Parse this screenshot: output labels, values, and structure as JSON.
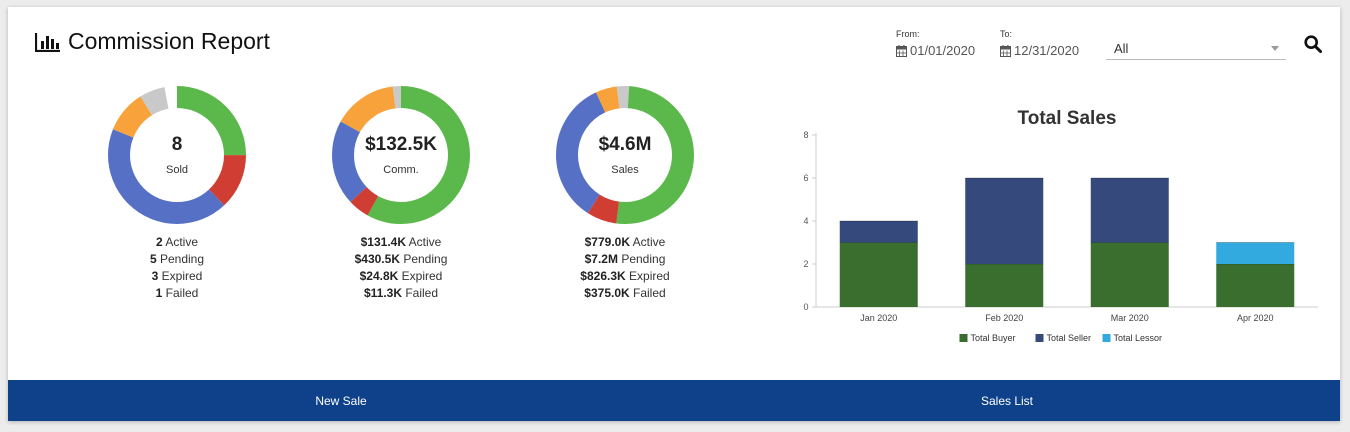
{
  "header": {
    "title": "Commission Report",
    "icon": "bar-chart-icon"
  },
  "filters": {
    "from_label": "From:",
    "from_value": "01/01/2020",
    "to_label": "To:",
    "to_value": "12/31/2020",
    "select_value": "All"
  },
  "colors": {
    "active": "#5bb84a",
    "pending": "#5570c4",
    "expired": "#cf3d33",
    "failed": "#f7a23b",
    "other": "#c9c9c9",
    "total_buyer": "#3a6e2e",
    "total_seller": "#35497c",
    "total_lessor": "#33aadf",
    "footer": "#0f418a"
  },
  "donuts": [
    {
      "value": "8",
      "caption": "Sold",
      "segments": [
        {
          "name": "active",
          "fraction": 0.25
        },
        {
          "name": "expired",
          "fraction": 0.13
        },
        {
          "name": "pending",
          "fraction": 0.43
        },
        {
          "name": "failed",
          "fraction": 0.1
        },
        {
          "name": "other",
          "fraction": 0.06
        }
      ],
      "legend": [
        {
          "value": "2",
          "label": "Active"
        },
        {
          "value": "5",
          "label": "Pending"
        },
        {
          "value": "3",
          "label": "Expired"
        },
        {
          "value": "1",
          "label": "Failed"
        }
      ]
    },
    {
      "value": "$132.5K",
      "caption": "Comm.",
      "segments": [
        {
          "name": "active",
          "fraction": 0.58
        },
        {
          "name": "expired",
          "fraction": 0.05
        },
        {
          "name": "pending",
          "fraction": 0.2
        },
        {
          "name": "failed",
          "fraction": 0.15
        },
        {
          "name": "other",
          "fraction": 0.02
        }
      ],
      "legend": [
        {
          "value": "$131.4K",
          "label": "Active"
        },
        {
          "value": "$430.5K",
          "label": "Pending"
        },
        {
          "value": "$24.8K",
          "label": "Expired"
        },
        {
          "value": "$11.3K",
          "label": "Failed"
        }
      ]
    },
    {
      "value": "$4.6M",
      "caption": "Sales",
      "segments": [
        {
          "name": "active",
          "fraction": 0.52
        },
        {
          "name": "expired",
          "fraction": 0.07
        },
        {
          "name": "pending",
          "fraction": 0.34
        },
        {
          "name": "failed",
          "fraction": 0.05
        },
        {
          "name": "other",
          "fraction": 0.03
        }
      ],
      "legend": [
        {
          "value": "$779.0K",
          "label": "Active"
        },
        {
          "value": "$7.2M",
          "label": "Pending"
        },
        {
          "value": "$826.3K",
          "label": "Expired"
        },
        {
          "value": "$375.0K",
          "label": "Failed"
        }
      ]
    }
  ],
  "chart_data": {
    "type": "bar",
    "stacked": true,
    "title": "Total Sales",
    "xlabel": "",
    "ylabel": "",
    "categories": [
      "Jan 2020",
      "Feb 2020",
      "Mar 2020",
      "Apr 2020"
    ],
    "series": [
      {
        "name": "Total Buyer",
        "values": [
          3,
          2,
          3,
          2
        ]
      },
      {
        "name": "Total Seller",
        "values": [
          1,
          4,
          3,
          0
        ]
      },
      {
        "name": "Total Lessor",
        "values": [
          0,
          0,
          0,
          1
        ]
      }
    ],
    "ylim": [
      0,
      8
    ],
    "yticks": [
      0,
      2,
      4,
      6,
      8
    ],
    "grid": false,
    "legend_position": "bottom"
  },
  "footer": {
    "new_sale": "New Sale",
    "sales_list": "Sales List"
  }
}
